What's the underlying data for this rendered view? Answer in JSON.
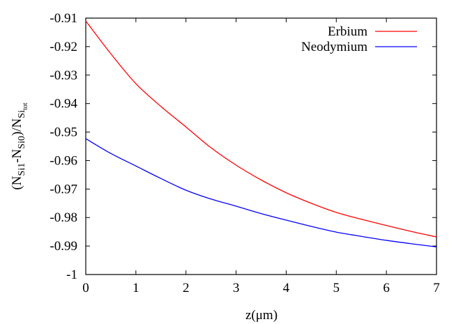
{
  "chart_data": {
    "type": "line",
    "title": "",
    "xlabel": "z(μm)",
    "ylabel": {
      "main": "(N",
      "sub1": "Si1",
      "mid": "-N",
      "sub2": "Si0",
      "tail": ")/N",
      "sub3": "Si",
      "subsub3": "tot"
    },
    "xlim": [
      0,
      7
    ],
    "ylim": [
      -1,
      -0.91
    ],
    "xticks": [
      "0",
      "1",
      "2",
      "3",
      "4",
      "5",
      "6",
      "7"
    ],
    "yticks": [
      "-0.91",
      "-0.92",
      "-0.93",
      "-0.94",
      "-0.95",
      "-0.96",
      "-0.97",
      "-0.98",
      "-0.99",
      "-1"
    ],
    "grid": false,
    "legend_position": "top-right",
    "x": [
      0,
      0.5,
      1,
      1.5,
      2,
      2.5,
      3,
      3.5,
      4,
      4.5,
      5,
      5.5,
      6,
      6.5,
      7
    ],
    "series": [
      {
        "name": "Erbium",
        "color": "#ff0000",
        "values": [
          -0.911,
          -0.9225,
          -0.933,
          -0.941,
          -0.9482,
          -0.9555,
          -0.9616,
          -0.9668,
          -0.9713,
          -0.975,
          -0.9782,
          -0.9806,
          -0.9828,
          -0.9849,
          -0.9868
        ]
      },
      {
        "name": "Neodymium",
        "color": "#0000ff",
        "values": [
          -0.9523,
          -0.9575,
          -0.9619,
          -0.9663,
          -0.9704,
          -0.9735,
          -0.976,
          -0.9786,
          -0.9809,
          -0.9831,
          -0.9851,
          -0.9866,
          -0.988,
          -0.9892,
          -0.9903
        ]
      }
    ]
  }
}
